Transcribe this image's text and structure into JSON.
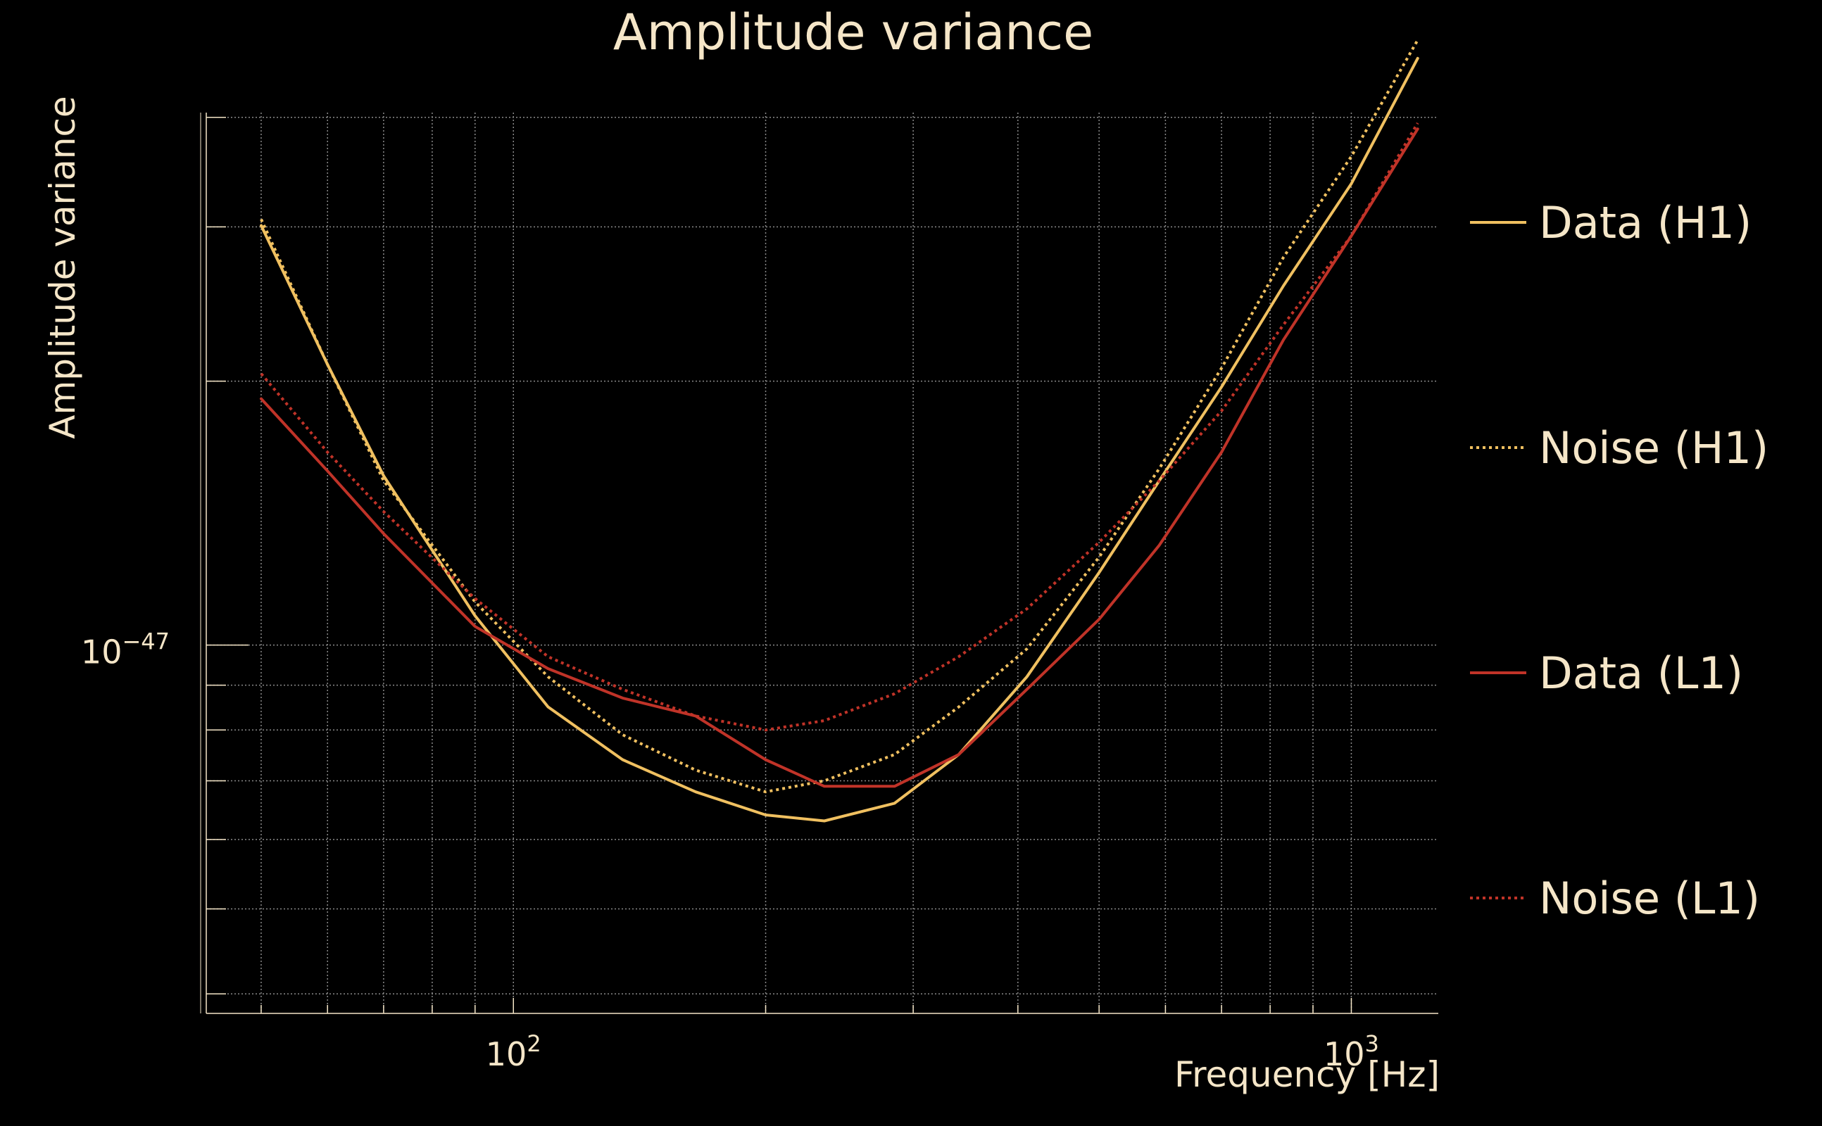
{
  "chart_data": {
    "type": "line",
    "title": "Amplitude variance",
    "xlabel": "Frequency [Hz]",
    "ylabel": "Amplitude variance",
    "xscale": "log",
    "yscale": "log",
    "xlim": [
      43,
      1270
    ],
    "ylim": [
      3.8e-48,
      4.05e-47
    ],
    "grid": true,
    "legend_position": "right",
    "x_tick_labels": [
      {
        "value": 100,
        "base": "10",
        "exponent": "2"
      },
      {
        "value": 1000,
        "base": "10",
        "exponent": "3"
      }
    ],
    "y_tick_labels": [
      {
        "value": 1e-47,
        "base": "10",
        "exponent": "−47"
      }
    ],
    "x": [
      50,
      60,
      70,
      90,
      110,
      135,
      165,
      200,
      235,
      285,
      340,
      410,
      500,
      590,
      700,
      830,
      1000,
      1200
    ],
    "series": [
      {
        "name": "Data (H1)",
        "color": "#f0c060",
        "dash": "solid",
        "values": [
          3.01e-47,
          2.09e-47,
          1.56e-47,
          1.08e-47,
          8.5e-48,
          7.4e-48,
          6.8e-48,
          6.4e-48,
          6.3e-48,
          6.6e-48,
          7.5e-48,
          9.2e-48,
          1.21e-47,
          1.54e-47,
          1.97e-47,
          2.57e-47,
          3.36e-47,
          4.67e-47
        ]
      },
      {
        "name": "Noise (H1)",
        "color": "#f0c060",
        "dash": "dotted",
        "values": [
          3.06e-47,
          2.09e-47,
          1.54e-47,
          1.12e-47,
          9.2e-48,
          7.9e-48,
          7.2e-48,
          6.8e-48,
          7e-48,
          7.5e-48,
          8.5e-48,
          9.9e-48,
          1.26e-47,
          1.59e-47,
          2.07e-47,
          2.77e-47,
          3.61e-47,
          4.9e-47
        ]
      },
      {
        "name": "Data (L1)",
        "color": "#c03328",
        "dash": "solid",
        "values": [
          1.91e-47,
          1.58e-47,
          1.34e-47,
          1.05e-47,
          9.4e-48,
          8.7e-48,
          8.3e-48,
          7.4e-48,
          6.9e-48,
          6.9e-48,
          7.5e-48,
          8.9e-48,
          1.07e-47,
          1.3e-47,
          1.66e-47,
          2.23e-47,
          2.93e-47,
          3.88e-47
        ]
      },
      {
        "name": "Noise (L1)",
        "color": "#c03328",
        "dash": "dotted",
        "values": [
          2.04e-47,
          1.66e-47,
          1.42e-47,
          1.13e-47,
          9.7e-48,
          8.9e-48,
          8.3e-48,
          8e-48,
          8.2e-48,
          8.8e-48,
          9.7e-48,
          1.1e-47,
          1.31e-47,
          1.54e-47,
          1.85e-47,
          2.32e-47,
          2.93e-47,
          3.94e-47
        ]
      }
    ],
    "colors": {
      "background": "#000000",
      "text": "#f5e6c8",
      "grid": "#8a8a8a",
      "axis": "#f5e6c8"
    }
  }
}
